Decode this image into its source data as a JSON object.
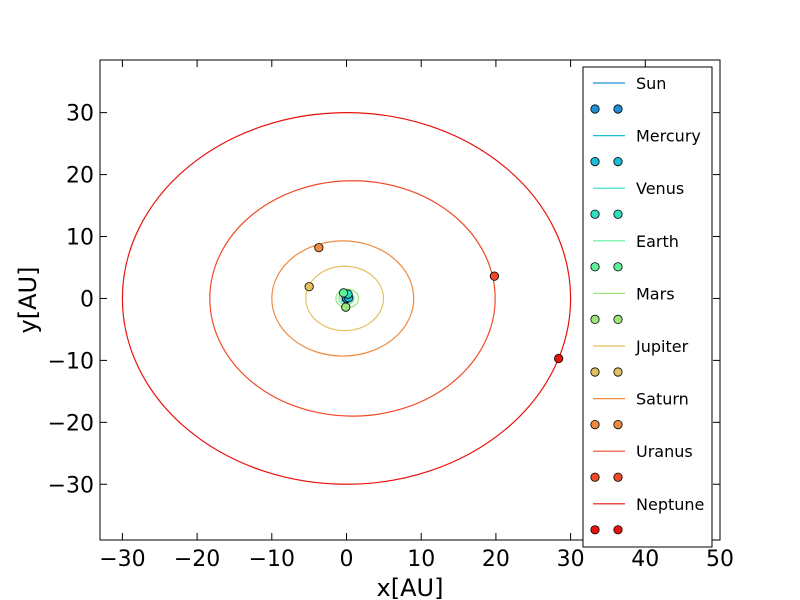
{
  "chart_data": {
    "type": "line",
    "xlabel": "x[AU]",
    "ylabel": "y[AU]",
    "xlim": [
      -33,
      50
    ],
    "ylim": [
      -39,
      38.5
    ],
    "xticks": [
      -30,
      -20,
      -10,
      0,
      10,
      20,
      30,
      40,
      50
    ],
    "yticks": [
      -30,
      -20,
      -10,
      0,
      10,
      20,
      30
    ],
    "xtick_labels": [
      "−30",
      "−20",
      "−10",
      "0",
      "10",
      "20",
      "30",
      "40",
      "50"
    ],
    "ytick_labels": [
      "−30",
      "−20",
      "−10",
      "0",
      "10",
      "20",
      "30"
    ],
    "grid": false,
    "legend_position": "top-right",
    "series": [
      {
        "name": "Sun",
        "color": "#1f8fd6",
        "orbit": {
          "a": 0.0,
          "b": 0.0,
          "cx": 0.0,
          "cy": 0.0
        },
        "position": [
          0.0,
          0.0
        ]
      },
      {
        "name": "Mercury",
        "color": "#19bcd4",
        "orbit": {
          "a": 0.39,
          "b": 0.38,
          "cx": 0.0,
          "cy": 0.0
        },
        "position": [
          0.3,
          0.1
        ]
      },
      {
        "name": "Venus",
        "color": "#2ee0c0",
        "orbit": {
          "a": 0.72,
          "b": 0.72,
          "cx": 0.0,
          "cy": 0.0
        },
        "position": [
          0.2,
          0.7
        ]
      },
      {
        "name": "Earth",
        "color": "#5ff09a",
        "orbit": {
          "a": 1.0,
          "b": 1.0,
          "cx": 0.0,
          "cy": 0.0
        },
        "position": [
          -0.4,
          0.9
        ]
      },
      {
        "name": "Mars",
        "color": "#9ee67a",
        "orbit": {
          "a": 1.52,
          "b": 1.5,
          "cx": 0.1,
          "cy": 0.0
        },
        "position": [
          -0.1,
          -1.4
        ]
      },
      {
        "name": "Jupiter",
        "color": "#e2c05e",
        "orbit": {
          "a": 5.2,
          "b": 5.2,
          "cx": -0.25,
          "cy": 0.0
        },
        "position": [
          -5.0,
          1.9
        ]
      },
      {
        "name": "Saturn",
        "color": "#f08a40",
        "orbit": {
          "a": 9.5,
          "b": 9.3,
          "cx": -0.5,
          "cy": 0.0
        },
        "position": [
          -3.7,
          8.2
        ]
      },
      {
        "name": "Uranus",
        "color": "#f04a28",
        "orbit": {
          "a": 19.1,
          "b": 19.0,
          "cx": 0.8,
          "cy": 0.0
        },
        "position": [
          19.8,
          3.6
        ]
      },
      {
        "name": "Neptune",
        "color": "#e8120c",
        "orbit": {
          "a": 30.0,
          "b": 30.0,
          "cx": 0.0,
          "cy": 0.0
        },
        "position": [
          28.4,
          -9.7
        ]
      }
    ]
  }
}
